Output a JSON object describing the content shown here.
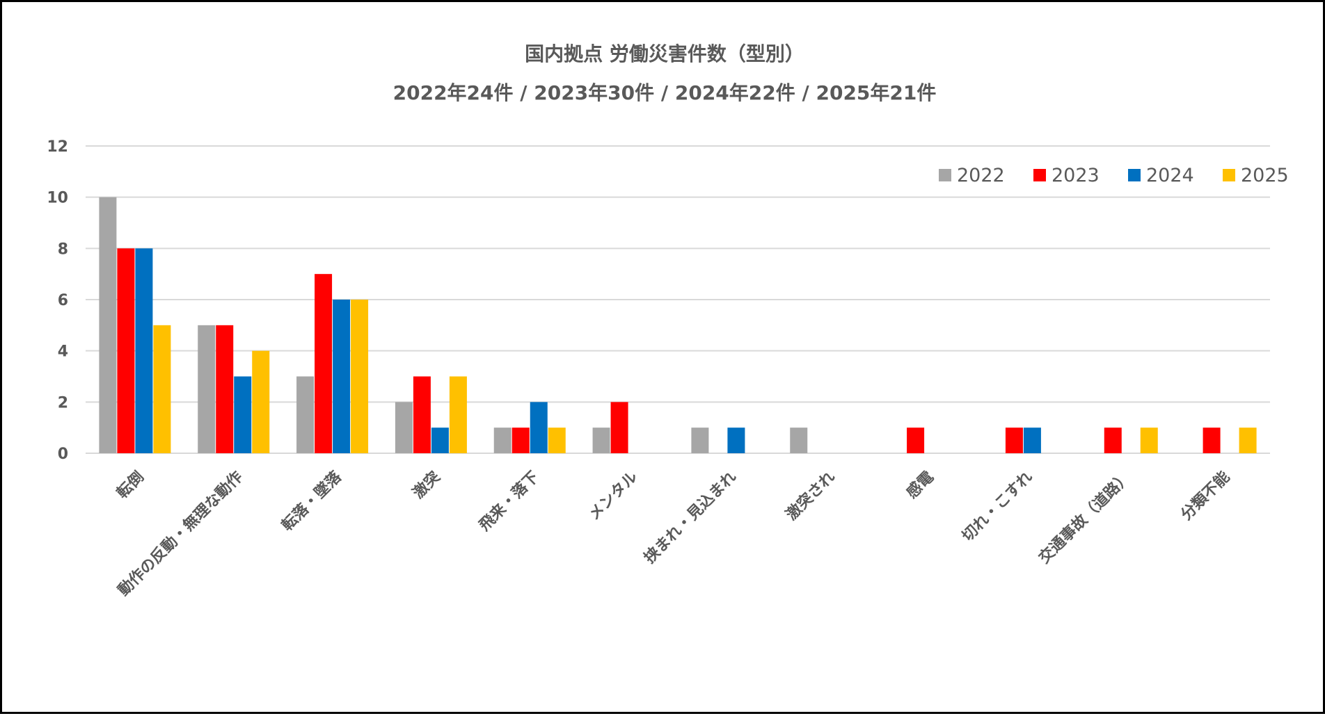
{
  "chart_data": {
    "type": "bar",
    "title": "国内拠点 労働災害件数（型別）",
    "subtitle": "2022年24件 / 2023年30件 / 2024年22件 / 2025年21件",
    "xlabel": "",
    "ylabel": "",
    "ylim": [
      0,
      12
    ],
    "yticks": [
      "0",
      "2",
      "4",
      "6",
      "8",
      "10",
      "12"
    ],
    "grid": true,
    "legend_position": "top-right",
    "categories": [
      "転倒",
      "動作の反動・無理な動作",
      "転落・墜落",
      "激突",
      "飛来・落下",
      "メンタル",
      "挟まれ・見込まれ",
      "激突され",
      "感電",
      "切れ・こすれ",
      "交通事故（道路）",
      "分類不能"
    ],
    "series": [
      {
        "name": "2022",
        "color": "#a6a6a6",
        "values": [
          10,
          5,
          3,
          2,
          1,
          1,
          1,
          1,
          0,
          0,
          0,
          0
        ]
      },
      {
        "name": "2023",
        "color": "#ff0000",
        "values": [
          8,
          5,
          7,
          3,
          1,
          2,
          0,
          0,
          1,
          1,
          1,
          1
        ]
      },
      {
        "name": "2024",
        "color": "#0070c0",
        "values": [
          8,
          3,
          6,
          1,
          2,
          0,
          1,
          0,
          0,
          1,
          0,
          0
        ]
      },
      {
        "name": "2025",
        "color": "#ffc000",
        "values": [
          5,
          4,
          6,
          3,
          1,
          0,
          0,
          0,
          0,
          0,
          1,
          1
        ]
      }
    ]
  }
}
